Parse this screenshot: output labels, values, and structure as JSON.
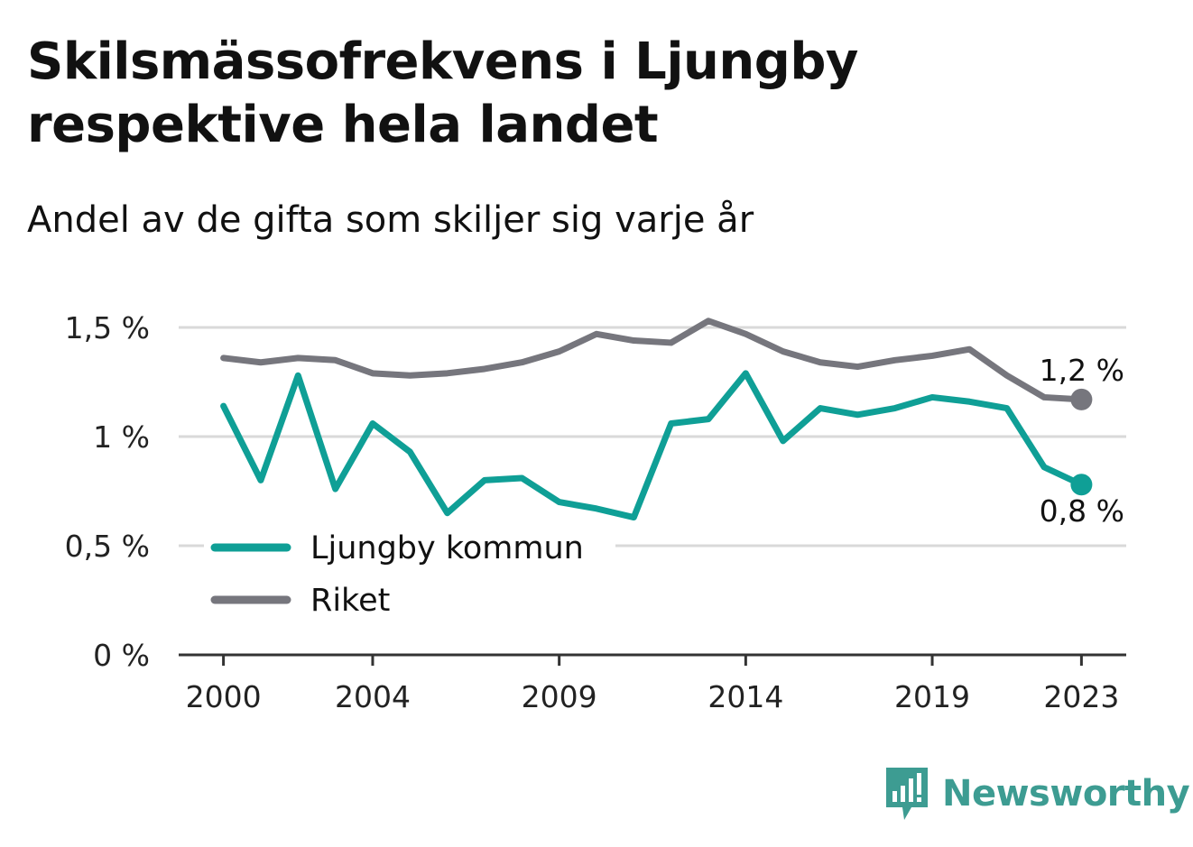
{
  "title": "Skilsmässofrekvens i Ljungby respektive hela landet",
  "subtitle": "Andel av de gifta som skiljer sig varje år",
  "brand": {
    "name": "Newsworthy",
    "icon": "bar-chart-speech-bubble-icon",
    "color": "#3d9c92"
  },
  "chart_data": {
    "type": "line",
    "x": [
      2000,
      2001,
      2002,
      2003,
      2004,
      2005,
      2006,
      2007,
      2008,
      2009,
      2010,
      2011,
      2012,
      2013,
      2014,
      2015,
      2016,
      2017,
      2018,
      2019,
      2020,
      2021,
      2022,
      2023
    ],
    "x_tick_values": [
      2000,
      2004,
      2009,
      2014,
      2019,
      2023
    ],
    "x_tick_labels": [
      "2000",
      "2004",
      "2009",
      "2014",
      "2019",
      "2023"
    ],
    "xlim": [
      1998.8,
      2024.2
    ],
    "ylim": [
      0,
      1.5
    ],
    "y_tick_values": [
      0,
      0.5,
      1,
      1.5
    ],
    "y_tick_labels": [
      "0 %",
      "0,5 %",
      "1 %",
      "1,5 %"
    ],
    "grid": true,
    "legend_position": "bottom-left",
    "series": [
      {
        "name": "Ljungby kommun",
        "color": "#0f9f96",
        "values": [
          1.14,
          0.8,
          1.28,
          0.76,
          1.06,
          0.93,
          0.65,
          0.8,
          0.81,
          0.7,
          0.67,
          0.63,
          1.06,
          1.08,
          1.29,
          0.98,
          1.13,
          1.1,
          1.13,
          1.18,
          1.16,
          1.13,
          0.86,
          0.78
        ],
        "end_label": "0,8 %"
      },
      {
        "name": "Riket",
        "color": "#76767d",
        "values": [
          1.36,
          1.34,
          1.36,
          1.35,
          1.29,
          1.28,
          1.29,
          1.31,
          1.34,
          1.39,
          1.47,
          1.44,
          1.43,
          1.53,
          1.47,
          1.39,
          1.34,
          1.32,
          1.35,
          1.37,
          1.4,
          1.28,
          1.18,
          1.17
        ],
        "end_label": "1,2 %"
      }
    ]
  }
}
